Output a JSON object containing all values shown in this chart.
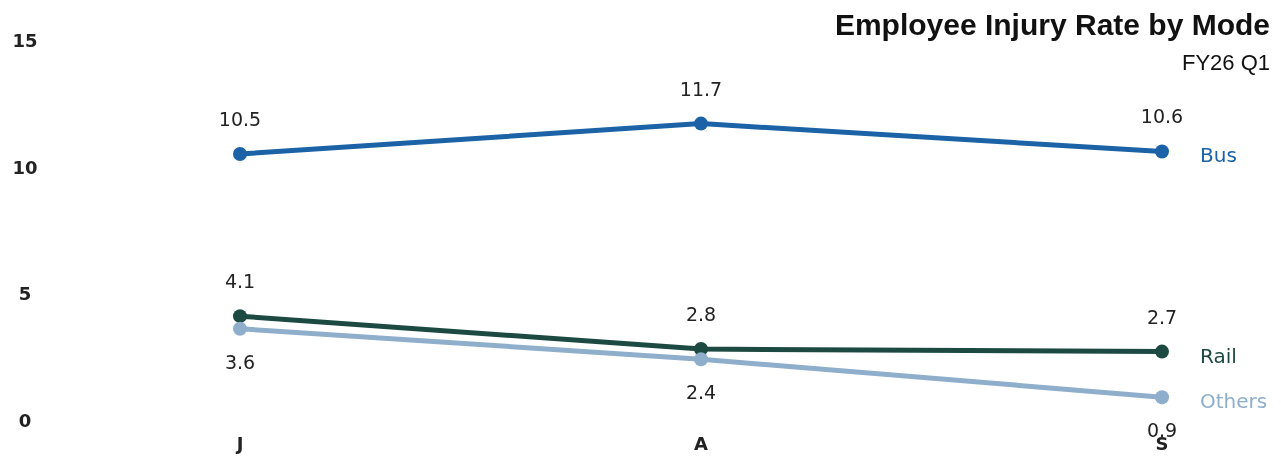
{
  "chart_data": {
    "type": "line",
    "title": "Employee Injury Rate by Mode",
    "subtitle": "FY26 Q1",
    "categories": [
      "J",
      "A",
      "S"
    ],
    "ylim": [
      0,
      15
    ],
    "yticks": [
      0,
      5,
      10,
      15
    ],
    "grid": false,
    "legend": false,
    "marker": "circle",
    "data_labels": true,
    "series": [
      {
        "name": "Bus",
        "color": "#1b62a6",
        "values": [
          10.5,
          11.7,
          10.6
        ]
      },
      {
        "name": "Rail",
        "color": "#1c4a43",
        "values": [
          4.1,
          2.8,
          2.7
        ]
      },
      {
        "name": "Others",
        "color": "#8eaecb",
        "values": [
          3.6,
          2.4,
          0.9
        ]
      }
    ]
  }
}
